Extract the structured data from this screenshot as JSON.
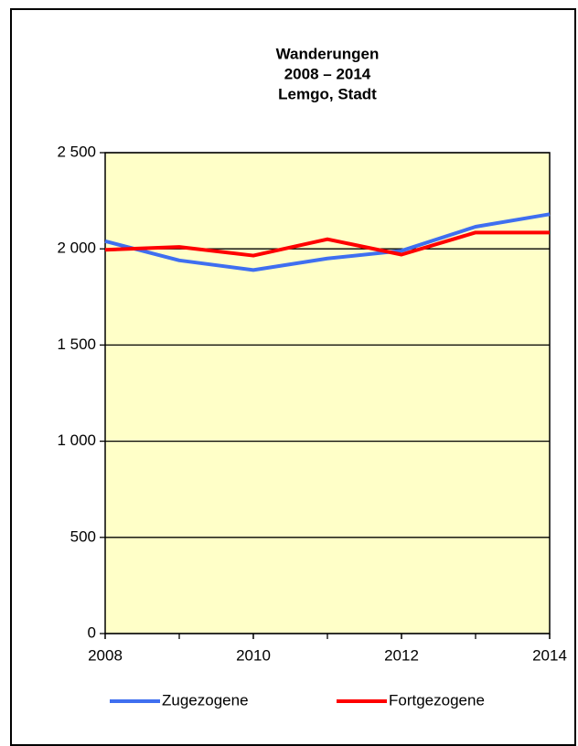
{
  "chart_data": {
    "type": "line",
    "title": [
      "Wanderungen",
      "2008 – 2014",
      "Lemgo, Stadt"
    ],
    "x": [
      2008,
      2009,
      2010,
      2011,
      2012,
      2013,
      2014
    ],
    "xlim": [
      2008,
      2014
    ],
    "xticks": [
      2008,
      2010,
      2012,
      2014
    ],
    "ylim": [
      0,
      2500
    ],
    "yticks": [
      0,
      500,
      {
        "value": 1000,
        "label": "1 000"
      },
      {
        "value": 1500,
        "label": "1 500"
      },
      {
        "value": 2000,
        "label": "2 000"
      },
      {
        "value": 2500,
        "label": "2 500"
      }
    ],
    "grid": true,
    "plot_background": "#ffffc8",
    "legend": "bottom",
    "series": [
      {
        "name": "Zugezogene",
        "color": "#3f6ff0",
        "values": [
          2040,
          1940,
          1890,
          1950,
          1990,
          2115,
          2180
        ]
      },
      {
        "name": "Fortgezogene",
        "color": "#ff0000",
        "values": [
          1995,
          2010,
          1965,
          2050,
          1970,
          2085,
          2085
        ]
      }
    ]
  }
}
